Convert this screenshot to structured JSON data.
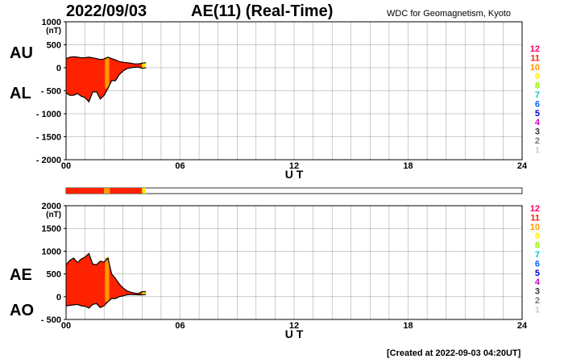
{
  "header": {
    "date": "2022/09/03",
    "title": "AE(11) (Real-Time)",
    "organization": "WDC for Geomagnetism, Kyoto"
  },
  "footer": {
    "created": "[Created at 2022-09-03 04:20UT]"
  },
  "colors": {
    "fill_main": "#ff2200",
    "fill_alt": "#ff9900",
    "fill_yellow": "#ffee00",
    "outline": "#000000",
    "grid": "#999999"
  },
  "legend": {
    "numbers": [
      "12",
      "11",
      "10",
      "9",
      "8",
      "7",
      "6",
      "5",
      "4",
      "3",
      "2",
      "1"
    ],
    "colors": [
      "#ff0066",
      "#ff2200",
      "#ff9900",
      "#ffee00",
      "#99ee00",
      "#00cccc",
      "#0066ff",
      "#0000cc",
      "#cc00cc",
      "#333333",
      "#777777",
      "#cccccc"
    ]
  },
  "chart_data": [
    {
      "type": "area",
      "title": "AE(11) (Real-Time)",
      "unit": "(nT)",
      "xlabel": "U T",
      "xlim": [
        0,
        24
      ],
      "ylim": [
        -2000,
        1000
      ],
      "x_ticks": [
        "00",
        "06",
        "12",
        "18",
        "24"
      ],
      "y_ticks": [
        "1000",
        "500",
        "0",
        "- 500",
        "- 1000",
        "- 1500",
        "- 2000"
      ],
      "series": [
        {
          "name": "AU",
          "x": [
            0,
            0.2,
            0.4,
            0.6,
            0.8,
            1.0,
            1.2,
            1.4,
            1.6,
            1.8,
            2.0,
            2.2,
            2.4,
            2.6,
            2.8,
            3.0,
            3.2,
            3.4,
            3.6,
            3.8,
            4.0,
            4.2
          ],
          "values": [
            200,
            230,
            240,
            230,
            215,
            220,
            230,
            215,
            200,
            180,
            190,
            230,
            200,
            170,
            135,
            120,
            110,
            100,
            85,
            85,
            100,
            110
          ]
        },
        {
          "name": "AL",
          "x": [
            0,
            0.2,
            0.4,
            0.6,
            0.8,
            1.0,
            1.2,
            1.4,
            1.6,
            1.8,
            2.0,
            2.2,
            2.4,
            2.6,
            2.8,
            3.0,
            3.2,
            3.4,
            3.6,
            3.8,
            4.0,
            4.2
          ],
          "values": [
            -550,
            -600,
            -600,
            -560,
            -620,
            -650,
            -740,
            -530,
            -520,
            -680,
            -600,
            -450,
            -280,
            -280,
            -150,
            -70,
            -20,
            0,
            10,
            15,
            -10,
            0
          ]
        }
      ]
    },
    {
      "type": "area",
      "title": "AE(11) (Real-Time)",
      "unit": "(nT)",
      "xlabel": "U T",
      "xlim": [
        0,
        24
      ],
      "ylim": [
        -500,
        2000
      ],
      "x_ticks": [
        "00",
        "06",
        "12",
        "18",
        "24"
      ],
      "y_ticks": [
        "2000",
        "1500",
        "1000",
        "500",
        "0",
        "- 500"
      ],
      "series": [
        {
          "name": "AE",
          "x": [
            0,
            0.2,
            0.4,
            0.6,
            0.8,
            1.0,
            1.2,
            1.4,
            1.6,
            1.8,
            2.0,
            2.2,
            2.4,
            2.6,
            2.8,
            3.0,
            3.2,
            3.4,
            3.6,
            3.8,
            4.0,
            4.2
          ],
          "values": [
            700,
            800,
            850,
            750,
            830,
            870,
            950,
            720,
            700,
            780,
            760,
            850,
            500,
            400,
            280,
            190,
            130,
            100,
            80,
            70,
            110,
            110
          ]
        },
        {
          "name": "AO",
          "x": [
            0,
            0.2,
            0.4,
            0.6,
            0.8,
            1.0,
            1.2,
            1.4,
            1.6,
            1.8,
            2.0,
            2.2,
            2.4,
            2.6,
            2.8,
            3.0,
            3.2,
            3.4,
            3.6,
            3.8,
            4.0,
            4.2
          ],
          "values": [
            -200,
            -190,
            -180,
            -170,
            -200,
            -210,
            -250,
            -170,
            -150,
            -240,
            -200,
            -110,
            -40,
            -40,
            0,
            20,
            40,
            50,
            45,
            40,
            40,
            50
          ]
        }
      ]
    }
  ],
  "activity_bar": {
    "segments": [
      {
        "from": 0,
        "to": 2.0,
        "color": "#ff2200"
      },
      {
        "from": 2.0,
        "to": 2.3,
        "color": "#ff9900"
      },
      {
        "from": 2.3,
        "to": 4.0,
        "color": "#ff2200"
      },
      {
        "from": 4.0,
        "to": 4.2,
        "color": "#ffee00"
      }
    ]
  }
}
